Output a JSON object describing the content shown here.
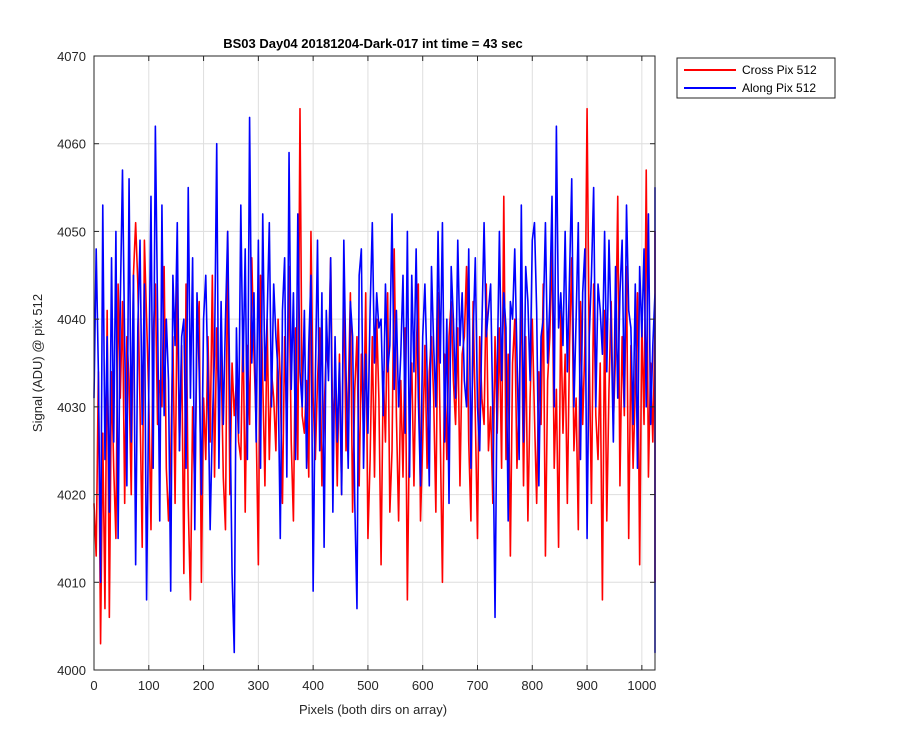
{
  "chart_data": {
    "type": "line",
    "title": "BS03 Day04 20181204-Dark-017 int time = 43 sec",
    "xlabel": "Pixels (both dirs on array)",
    "ylabel": "Signal (ADU) @ pix 512",
    "xlim": [
      0,
      1024
    ],
    "ylim": [
      4000,
      4070
    ],
    "xticks": [
      0,
      100,
      200,
      300,
      400,
      500,
      600,
      700,
      800,
      900,
      1000
    ],
    "yticks": [
      4000,
      4010,
      4020,
      4030,
      4040,
      4050,
      4060,
      4070
    ],
    "grid": true,
    "legend_position": "top-right (outside)",
    "series": [
      {
        "name": "Cross Pix 512",
        "color": "#ff0000",
        "sample_step": 4,
        "x_start": 0,
        "values": [
          4019,
          4013,
          4034,
          4003,
          4027,
          4007,
          4041,
          4006,
          4034,
          4023,
          4015,
          4044,
          4031,
          4042,
          4019,
          4038,
          4033,
          4020,
          4045,
          4051,
          4044,
          4030,
          4014,
          4049,
          4040,
          4031,
          4016,
          4038,
          4044,
          4028,
          4033,
          4030,
          4046,
          4023,
          4017,
          4024,
          4038,
          4019,
          4044,
          4025,
          4037,
          4011,
          4044,
          4019,
          4008,
          4030,
          4020,
          4038,
          4042,
          4010,
          4031,
          4024,
          4038,
          4026,
          4045,
          4022,
          4039,
          4029,
          4036,
          4022,
          4016,
          4050,
          4020,
          4035,
          4029,
          4033,
          4026,
          4024,
          4040,
          4018,
          4037,
          4028,
          4047,
          4036,
          4028,
          4012,
          4045,
          4033,
          4021,
          4040,
          4024,
          4034,
          4031,
          4025,
          4040,
          4033,
          4019,
          4038,
          4027,
          4046,
          4026,
          4017,
          4039,
          4024,
          4064,
          4029,
          4027,
          4033,
          4022,
          4050,
          4031,
          4024,
          4033,
          4039,
          4021,
          4029,
          4037,
          4034,
          4047,
          4026,
          4034,
          4021,
          4036,
          4020,
          4045,
          4025,
          4031,
          4043,
          4018,
          4032,
          4038,
          4021,
          4036,
          4027,
          4043,
          4015,
          4024,
          4038,
          4022,
          4040,
          4031,
          4012,
          4034,
          4026,
          4043,
          4018,
          4025,
          4048,
          4029,
          4017,
          4033,
          4022,
          4039,
          4008,
          4029,
          4035,
          4021,
          4036,
          4044,
          4017,
          4026,
          4037,
          4023,
          4034,
          4038,
          4031,
          4018,
          4043,
          4027,
          4010,
          4036,
          4024,
          4038,
          4042,
          4033,
          4028,
          4039,
          4021,
          4036,
          4038,
          4046,
          4026,
          4017,
          4042,
          4029,
          4015,
          4038,
          4031,
          4028,
          4044,
          4025,
          4030,
          4019,
          4038,
          4027,
          4039,
          4023,
          4054,
          4024,
          4036,
          4013,
          4035,
          4040,
          4023,
          4031,
          4043,
          4021,
          4038,
          4017,
          4031,
          4040,
          4029,
          4019,
          4034,
          4028,
          4044,
          4013,
          4033,
          4038,
          4049,
          4023,
          4032,
          4014,
          4041,
          4027,
          4036,
          4019,
          4037,
          4047,
          4025,
          4031,
          4016,
          4042,
          4028,
          4037,
          4064,
          4036,
          4019,
          4044,
          4029,
          4024,
          4035,
          4008,
          4041,
          4017,
          4032,
          4042,
          4028,
          4036,
          4054,
          4021,
          4038,
          4029,
          4046,
          4015,
          4037,
          4023,
          4032,
          4043,
          4012,
          4040,
          4028,
          4057,
          4022,
          4035,
          4026,
          4039,
          4018,
          4032,
          4038,
          4029,
          4037,
          4045,
          4014,
          4028,
          4038,
          4034,
          4043,
          4020,
          4024,
          4036,
          4044,
          4027,
          4033,
          4021,
          4037,
          4017,
          4030,
          4050,
          4017,
          4031,
          4015,
          4042,
          4036,
          4028,
          4045,
          4033,
          4024,
          4038,
          4010,
          4032,
          4041,
          4030,
          4018,
          4037,
          4049,
          4028,
          4043,
          4024,
          4031,
          4017,
          4038,
          4036,
          4029,
          4040,
          4022,
          4046,
          4014,
          4037,
          4031,
          4050,
          4030,
          4040,
          4029
        ]
      },
      {
        "name": "Along Pix 512",
        "color": "#0000ff",
        "sample_step": 4,
        "x_start": 0,
        "values": [
          4031,
          4048,
          4034,
          4010,
          4053,
          4024,
          4038,
          4018,
          4047,
          4026,
          4050,
          4015,
          4042,
          4057,
          4037,
          4021,
          4056,
          4026,
          4045,
          4012,
          4039,
          4049,
          4028,
          4044,
          4008,
          4032,
          4054,
          4023,
          4062,
          4041,
          4017,
          4053,
          4029,
          4040,
          4033,
          4009,
          4045,
          4037,
          4051,
          4025,
          4038,
          4040,
          4023,
          4055,
          4031,
          4047,
          4016,
          4043,
          4034,
          4020,
          4040,
          4045,
          4033,
          4016,
          4028,
          4036,
          4060,
          4023,
          4042,
          4028,
          4040,
          4050,
          4031,
          4011,
          4002,
          4039,
          4027,
          4053,
          4034,
          4048,
          4024,
          4063,
          4035,
          4043,
          4026,
          4049,
          4023,
          4052,
          4033,
          4040,
          4051,
          4030,
          4044,
          4038,
          4034,
          4015,
          4041,
          4047,
          4022,
          4059,
          4032,
          4043,
          4024,
          4052,
          4034,
          4030,
          4041,
          4023,
          4037,
          4045,
          4009,
          4033,
          4049,
          4025,
          4043,
          4014,
          4041,
          4033,
          4047,
          4018,
          4038,
          4026,
          4035,
          4020,
          4049,
          4034,
          4023,
          4042,
          4038,
          4019,
          4007,
          4045,
          4048,
          4023,
          4036,
          4027,
          4041,
          4051,
          4035,
          4043,
          4039,
          4040,
          4029,
          4044,
          4034,
          4037,
          4052,
          4032,
          4041,
          4030,
          4036,
          4045,
          4027,
          4050,
          4022,
          4045,
          4034,
          4048,
          4031,
          4021,
          4038,
          4044,
          4034,
          4021,
          4046,
          4037,
          4030,
          4050,
          4035,
          4051,
          4026,
          4040,
          4019,
          4046,
          4040,
          4031,
          4049,
          4037,
          4043,
          4033,
          4030,
          4048,
          4023,
          4038,
          4047,
          4030,
          4025,
          4039,
          4051,
          4038,
          4041,
          4044,
          4029,
          4006,
          4034,
          4050,
          4033,
          4043,
          4039,
          4017,
          4042,
          4040,
          4048,
          4036,
          4024,
          4053,
          4026,
          4046,
          4042,
          4033,
          4049,
          4051,
          4041,
          4021,
          4038,
          4040,
          4051,
          4035,
          4042,
          4054,
          4030,
          4062,
          4039,
          4043,
          4037,
          4050,
          4034,
          4045,
          4056,
          4030,
          4040,
          4051,
          4024,
          4043,
          4048,
          4015,
          4038,
          4045,
          4055,
          4030,
          4044,
          4041,
          4036,
          4050,
          4034,
          4049,
          4039,
          4026,
          4046,
          4031,
          4043,
          4049,
          4030,
          4053,
          4041,
          4039,
          4028,
          4044,
          4023,
          4046,
          4038,
          4048,
          4030,
          4052,
          4028,
          4037,
          4043,
          4040,
          4031,
          4046,
          4021,
          4045,
          4055,
          4039,
          4033,
          4047,
          4034,
          4026,
          4049,
          4028,
          4044,
          4037,
          4012,
          4043,
          4045,
          4030,
          4049,
          4036,
          4040,
          4030,
          4047,
          4040,
          4016,
          4036,
          4002,
          4050,
          4048,
          4034,
          4038,
          4047,
          4028,
          4042,
          4021,
          4049,
          4038,
          4032,
          4043,
          4025,
          4048,
          4033,
          4038,
          4047,
          4015,
          4044,
          4041,
          4034,
          4050,
          4049,
          4036,
          4052
        ]
      }
    ]
  }
}
